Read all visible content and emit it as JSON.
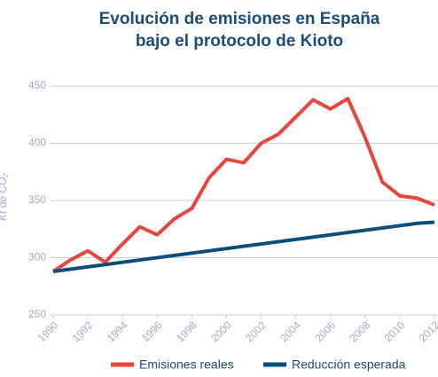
{
  "chart_data": {
    "type": "line",
    "title": [
      "Evolución de emisiones en España",
      "bajo el protocolo de Kioto"
    ],
    "y_label": "Kt de CO₂",
    "x": [
      1990,
      1991,
      1992,
      1993,
      1994,
      1995,
      1996,
      1997,
      1998,
      1999,
      2000,
      2001,
      2002,
      2003,
      2004,
      2005,
      2006,
      2007,
      2008,
      2009,
      2010,
      2011,
      2012
    ],
    "series": [
      {
        "name": "Emisiones reales",
        "color": "#e8453c",
        "values": [
          288,
          298,
          306,
          296,
          312,
          327,
          320,
          334,
          343,
          370,
          386,
          383,
          400,
          408,
          423,
          438,
          430,
          439,
          405,
          366,
          354,
          352,
          346
        ]
      },
      {
        "name": "Reducción esperada",
        "color": "#0b4e78",
        "x": [
          1990,
          2011,
          2012
        ],
        "values": [
          288,
          330,
          331
        ]
      }
    ],
    "xlim": [
      1990,
      2012
    ],
    "xticks": [
      1990,
      1992,
      1994,
      1996,
      1998,
      2000,
      2002,
      2004,
      2006,
      2008,
      2010,
      2012
    ],
    "ylim": [
      250,
      450
    ],
    "yticks": [
      250,
      300,
      350,
      400,
      450
    ],
    "grid": true
  }
}
